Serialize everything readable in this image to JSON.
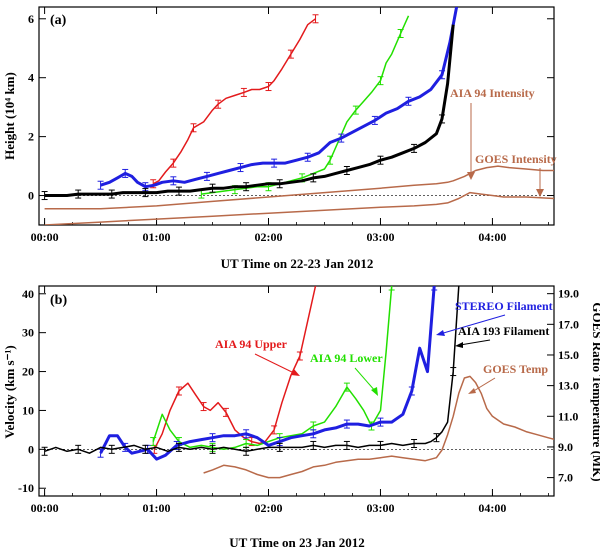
{
  "figure": {
    "colors": {
      "red": "#e31a1c",
      "green": "#22e000",
      "blue": "#1f1fe0",
      "black": "#000000",
      "brown": "#b86a4a"
    }
  },
  "chart_data": [
    {
      "type": "line",
      "panel_label": "(a)",
      "xlabel": "UT Time on 22-23 Jan 2012",
      "ylabel": "Height (10⁴ km)",
      "xlim": [
        -0.05,
        4.55
      ],
      "ylim": [
        -1.0,
        6.4
      ],
      "x_ticks": [
        0,
        1,
        2,
        3,
        4
      ],
      "x_tick_labels": [
        "00:00",
        "01:00",
        "02:00",
        "03:00",
        "04:00"
      ],
      "y_ticks": [
        0,
        2,
        4,
        6
      ],
      "y_tick_labels": [
        "0",
        "2",
        "4",
        "6"
      ],
      "annotations": [
        "AIA 94 Intensity",
        "GOES Intensity"
      ],
      "series": [
        {
          "name": "AIA 94 Upper (red)",
          "color": "red",
          "x": [
            0.97,
            1.02,
            1.08,
            1.15,
            1.22,
            1.28,
            1.33,
            1.42,
            1.5,
            1.55,
            1.62,
            1.7,
            1.78,
            1.85,
            1.92,
            2.0,
            2.05,
            2.12,
            2.2,
            2.28,
            2.35,
            2.42
          ],
          "y": [
            0.4,
            0.5,
            0.8,
            1.1,
            1.5,
            1.9,
            2.3,
            2.5,
            2.9,
            3.1,
            3.3,
            3.4,
            3.5,
            3.6,
            3.6,
            3.7,
            3.9,
            4.3,
            4.8,
            5.3,
            5.8,
            6.0
          ]
        },
        {
          "name": "AIA 94 Lower (green)",
          "color": "green",
          "x": [
            1.4,
            1.5,
            1.6,
            1.7,
            1.8,
            1.9,
            2.0,
            2.1,
            2.2,
            2.3,
            2.4,
            2.5,
            2.55,
            2.62,
            2.7,
            2.78,
            2.85,
            2.92,
            3.0,
            3.05,
            3.1,
            3.18,
            3.25
          ],
          "y": [
            0.05,
            0.1,
            0.15,
            0.2,
            0.25,
            0.3,
            0.3,
            0.4,
            0.5,
            0.6,
            0.75,
            0.9,
            1.2,
            1.8,
            2.5,
            2.9,
            3.2,
            3.5,
            3.9,
            4.5,
            4.8,
            5.5,
            6.1
          ]
        },
        {
          "name": "STEREO Filament (blue)",
          "color": "blue",
          "x": [
            0.5,
            0.58,
            0.65,
            0.72,
            0.78,
            0.83,
            0.9,
            0.98,
            1.05,
            1.15,
            1.25,
            1.35,
            1.45,
            1.55,
            1.65,
            1.75,
            1.85,
            1.95,
            2.05,
            2.15,
            2.25,
            2.35,
            2.45,
            2.55,
            2.65,
            2.75,
            2.85,
            2.95,
            3.05,
            3.15,
            3.25,
            3.35,
            3.45,
            3.55,
            3.62,
            3.68
          ],
          "y": [
            0.35,
            0.45,
            0.6,
            0.75,
            0.65,
            0.45,
            0.3,
            0.35,
            0.45,
            0.5,
            0.45,
            0.55,
            0.65,
            0.75,
            0.85,
            0.95,
            1.05,
            1.1,
            1.1,
            1.1,
            1.2,
            1.3,
            1.45,
            1.8,
            1.95,
            2.15,
            2.35,
            2.55,
            2.8,
            2.95,
            3.2,
            3.35,
            3.6,
            4.1,
            5.2,
            6.4
          ]
        },
        {
          "name": "AIA 193 Filament (black)",
          "color": "black",
          "x": [
            0.0,
            0.1,
            0.2,
            0.3,
            0.4,
            0.5,
            0.6,
            0.7,
            0.8,
            0.9,
            1.0,
            1.1,
            1.2,
            1.3,
            1.4,
            1.5,
            1.6,
            1.7,
            1.8,
            1.9,
            2.0,
            2.1,
            2.2,
            2.3,
            2.4,
            2.5,
            2.6,
            2.7,
            2.8,
            2.9,
            3.0,
            3.1,
            3.2,
            3.3,
            3.4,
            3.5,
            3.55,
            3.6,
            3.65
          ],
          "y": [
            0.0,
            0.0,
            0.0,
            0.05,
            0.05,
            0.05,
            0.05,
            0.1,
            0.1,
            0.1,
            0.1,
            0.15,
            0.15,
            0.15,
            0.2,
            0.25,
            0.25,
            0.3,
            0.3,
            0.35,
            0.4,
            0.4,
            0.45,
            0.5,
            0.6,
            0.65,
            0.75,
            0.85,
            0.95,
            1.05,
            1.2,
            1.3,
            1.45,
            1.6,
            1.8,
            2.1,
            2.6,
            3.8,
            5.8
          ]
        },
        {
          "name": "AIA 94 Intensity",
          "color": "brown",
          "x": [
            0.0,
            0.5,
            1.0,
            1.5,
            2.0,
            2.5,
            3.0,
            3.3,
            3.5,
            3.6,
            3.65,
            3.75,
            3.85,
            3.95,
            4.05,
            4.15,
            4.3,
            4.45,
            4.55
          ],
          "y": [
            -0.45,
            -0.45,
            -0.35,
            -0.2,
            -0.05,
            0.1,
            0.25,
            0.35,
            0.4,
            0.45,
            0.5,
            0.65,
            0.85,
            0.95,
            1.0,
            0.95,
            0.9,
            0.85,
            0.85
          ]
        },
        {
          "name": "GOES Intensity",
          "color": "brown",
          "x": [
            0.0,
            0.5,
            1.0,
            1.5,
            2.0,
            2.5,
            3.0,
            3.3,
            3.5,
            3.6,
            3.7,
            3.8,
            3.9,
            4.0,
            4.1,
            4.3,
            4.55
          ],
          "y": [
            -1.0,
            -0.9,
            -0.8,
            -0.7,
            -0.6,
            -0.5,
            -0.4,
            -0.35,
            -0.3,
            -0.25,
            -0.1,
            0.1,
            0.05,
            0.0,
            -0.05,
            -0.05,
            -0.1
          ]
        }
      ]
    },
    {
      "type": "line",
      "panel_label": "(b)",
      "xlabel": "UT Time on 23 Jan 2012",
      "ylabel": "Velocity (km s⁻¹)",
      "y2label": "GOES Ratio Temperature (MK)",
      "xlim": [
        -0.05,
        4.55
      ],
      "ylim": [
        -12,
        42
      ],
      "y2lim": [
        5.8,
        19.5
      ],
      "x_ticks": [
        0,
        1,
        2,
        3,
        4
      ],
      "x_tick_labels": [
        "00:00",
        "01:00",
        "02:00",
        "03:00",
        "04:00"
      ],
      "y_ticks": [
        -10,
        0,
        10,
        20,
        30,
        40
      ],
      "y_tick_labels": [
        "-10",
        "0",
        "10",
        "20",
        "30",
        "40"
      ],
      "y2_ticks": [
        7,
        9,
        11,
        13,
        15,
        17,
        19
      ],
      "y2_tick_labels": [
        "7.0",
        "9.0",
        "11.0",
        "13.0",
        "15.0",
        "17.0",
        "19.0"
      ],
      "annotations": [
        "AIA 94 Upper",
        "AIA 94 Lower",
        "STEREO Filament",
        "AIA 193 Filament",
        "GOES Temp"
      ],
      "series": [
        {
          "name": "AIA 94 Upper",
          "color": "red",
          "x": [
            0.98,
            1.05,
            1.12,
            1.2,
            1.28,
            1.35,
            1.42,
            1.48,
            1.55,
            1.62,
            1.7,
            1.78,
            1.85,
            1.92,
            1.97,
            2.05,
            2.12,
            2.2,
            2.28,
            2.35,
            2.42
          ],
          "y": [
            0.0,
            4.0,
            10.0,
            15.0,
            17.0,
            14.0,
            11.0,
            10.0,
            12.0,
            9.5,
            5.0,
            3.0,
            2.0,
            1.5,
            2.0,
            5.0,
            12.0,
            19.0,
            24.0,
            33.0,
            42.0
          ]
        },
        {
          "name": "AIA 94 Lower",
          "color": "green",
          "x": [
            0.97,
            1.05,
            1.12,
            1.2,
            1.3,
            1.4,
            1.5,
            1.6,
            1.7,
            1.8,
            1.9,
            2.0,
            2.1,
            2.2,
            2.3,
            2.4,
            2.5,
            2.6,
            2.7,
            2.78,
            2.85,
            2.92,
            3.0,
            3.05,
            3.1
          ],
          "y": [
            2.0,
            9.0,
            5.0,
            2.0,
            0.5,
            1.0,
            0.5,
            0.0,
            0.5,
            1.5,
            1.0,
            2.0,
            3.0,
            3.5,
            4.0,
            6.0,
            7.0,
            11.0,
            16.0,
            13.0,
            10.0,
            6.0,
            10.0,
            25.0,
            42.0
          ]
        },
        {
          "name": "STEREO Filament",
          "color": "blue",
          "x": [
            0.5,
            0.58,
            0.65,
            0.72,
            0.78,
            0.85,
            0.92,
            1.0,
            1.08,
            1.18,
            1.3,
            1.4,
            1.5,
            1.6,
            1.7,
            1.8,
            1.9,
            2.0,
            2.1,
            2.2,
            2.3,
            2.4,
            2.5,
            2.6,
            2.7,
            2.8,
            2.9,
            3.0,
            3.1,
            3.2,
            3.28,
            3.35,
            3.42,
            3.48
          ],
          "y": [
            -1.0,
            3.5,
            3.5,
            0.5,
            -1.0,
            -0.5,
            0.0,
            -2.5,
            -1.5,
            1.0,
            2.0,
            2.5,
            3.0,
            3.5,
            3.5,
            4.0,
            3.0,
            1.0,
            2.0,
            3.0,
            3.5,
            4.0,
            5.0,
            5.5,
            6.5,
            6.5,
            6.0,
            7.0,
            7.0,
            9.0,
            15.0,
            26.0,
            20.0,
            42.0
          ]
        },
        {
          "name": "AIA 193 Filament",
          "color": "black",
          "x": [
            0.0,
            0.1,
            0.2,
            0.3,
            0.4,
            0.5,
            0.6,
            0.7,
            0.8,
            0.9,
            1.0,
            1.1,
            1.2,
            1.3,
            1.4,
            1.5,
            1.6,
            1.7,
            1.8,
            1.9,
            2.0,
            2.1,
            2.2,
            2.3,
            2.4,
            2.5,
            2.6,
            2.7,
            2.8,
            2.9,
            3.0,
            3.1,
            3.2,
            3.3,
            3.4,
            3.45,
            3.5,
            3.55,
            3.6,
            3.65,
            3.7
          ],
          "y": [
            -0.5,
            0.5,
            -0.5,
            0.0,
            -1.0,
            0.5,
            0.0,
            0.5,
            1.0,
            0.0,
            0.5,
            -0.5,
            0.5,
            0.0,
            0.5,
            0.0,
            0.5,
            0.0,
            -0.5,
            0.0,
            0.5,
            0.5,
            0.5,
            0.5,
            1.0,
            0.5,
            1.0,
            1.0,
            0.5,
            1.0,
            1.0,
            1.5,
            1.0,
            1.5,
            1.5,
            2.0,
            3.0,
            4.5,
            7.0,
            20.0,
            42.0
          ]
        },
        {
          "name": "GOES Temp",
          "color": "brown",
          "temperature_axis": true,
          "x": [
            1.42,
            1.5,
            1.6,
            1.7,
            1.8,
            1.9,
            2.0,
            2.1,
            2.2,
            2.3,
            2.4,
            2.5,
            2.6,
            2.7,
            2.8,
            2.9,
            3.0,
            3.1,
            3.2,
            3.3,
            3.4,
            3.5,
            3.55,
            3.6,
            3.65,
            3.7,
            3.75,
            3.8,
            3.85,
            3.9,
            3.95,
            4.0,
            4.1,
            4.2,
            4.3,
            4.4,
            4.5,
            4.55
          ],
          "y": [
            7.3,
            7.5,
            7.8,
            7.7,
            7.5,
            7.2,
            7.0,
            7.0,
            7.2,
            7.4,
            7.7,
            7.8,
            8.0,
            8.1,
            8.2,
            8.2,
            8.3,
            8.4,
            8.3,
            8.2,
            8.1,
            8.3,
            8.8,
            9.8,
            11.0,
            12.5,
            13.5,
            13.6,
            13.2,
            12.5,
            11.5,
            11.0,
            10.5,
            10.3,
            10.0,
            9.8,
            9.6,
            9.5
          ]
        }
      ]
    }
  ]
}
